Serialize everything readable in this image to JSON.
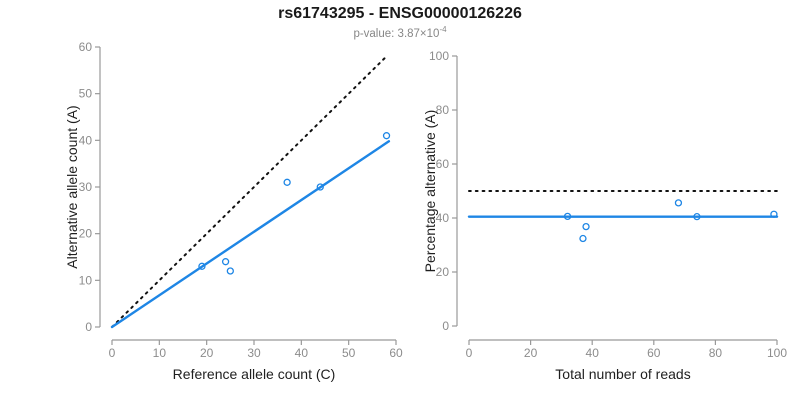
{
  "header": {
    "title": "rs61743295 - ENSG00000126226",
    "subtitle_prefix": "p-value: 3.87×10",
    "subtitle_exponent": "-4"
  },
  "colors": {
    "accent_blue": "#1E86E5",
    "line_black": "#111111",
    "axis_gray": "#999999",
    "tick_label_gray": "#8c8c8c",
    "axis_title_color": "#1f1f1f",
    "subtitle_gray": "#878787",
    "background": "#ffffff"
  },
  "chart_data": [
    {
      "type": "scatter",
      "panel": "left",
      "xlabel": "Reference allele count (C)",
      "ylabel": "Alternative allele count (A)",
      "xlim": [
        0,
        60
      ],
      "ylim": [
        0,
        60
      ],
      "xticks": [
        0,
        10,
        20,
        30,
        40,
        50,
        60
      ],
      "yticks": [
        0,
        10,
        20,
        30,
        40,
        50,
        60
      ],
      "grid": false,
      "points": [
        [
          19,
          13
        ],
        [
          24,
          14
        ],
        [
          25,
          12
        ],
        [
          37,
          31
        ],
        [
          44,
          30
        ],
        [
          58,
          41
        ]
      ],
      "lines": [
        {
          "name": "identity-line",
          "style": "dotted",
          "from": [
            0,
            0
          ],
          "to": [
            58,
            58
          ]
        },
        {
          "name": "fit-line",
          "style": "solid",
          "from": [
            0,
            0
          ],
          "to": [
            58.5,
            39.8
          ]
        }
      ]
    },
    {
      "type": "scatter",
      "panel": "right",
      "xlabel": "Total number of reads",
      "ylabel": "Percentage alternative (A)",
      "xlim": [
        0,
        100
      ],
      "ylim": [
        0,
        100
      ],
      "xticks": [
        0,
        20,
        40,
        60,
        80,
        100
      ],
      "yticks": [
        0,
        20,
        40,
        60,
        80,
        100
      ],
      "grid": false,
      "points": [
        [
          32,
          40.6
        ],
        [
          37,
          32.4
        ],
        [
          38,
          36.8
        ],
        [
          68,
          45.6
        ],
        [
          74,
          40.5
        ],
        [
          99,
          41.4
        ]
      ],
      "lines": [
        {
          "name": "null-line",
          "style": "dotted",
          "y": 50
        },
        {
          "name": "fit-line",
          "style": "solid",
          "y": 40.5
        }
      ]
    }
  ]
}
